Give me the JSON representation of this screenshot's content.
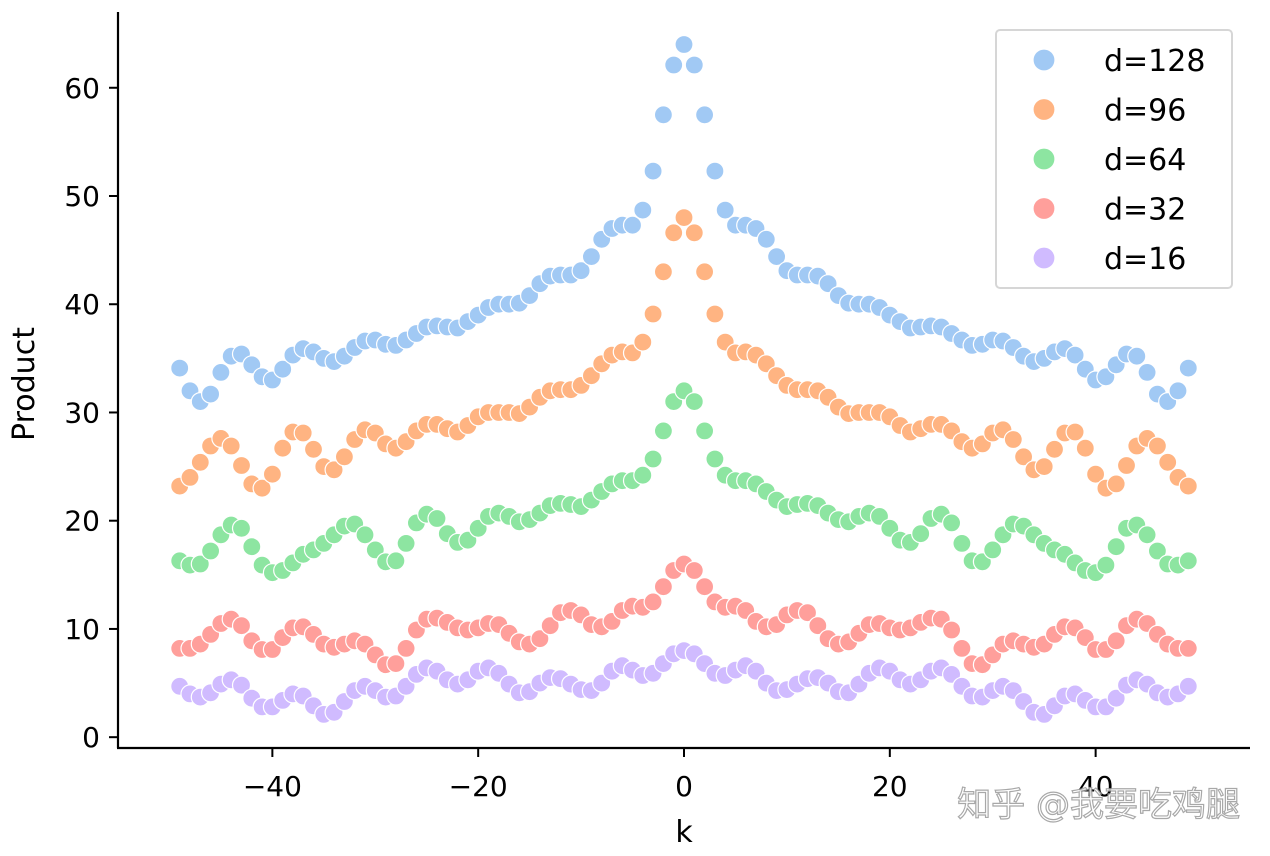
{
  "watermark": "知乎 @我要吃鸡腿",
  "chart_data": {
    "type": "scatter",
    "title": "",
    "xlabel": "k",
    "ylabel": "Product",
    "xlim": [
      -55,
      55
    ],
    "ylim": [
      -1,
      67
    ],
    "xticks": [
      -40,
      -20,
      0,
      20,
      40
    ],
    "xtick_labels": [
      "−40",
      "−20",
      "0",
      "20",
      "40"
    ],
    "yticks": [
      0,
      10,
      20,
      30,
      40,
      50,
      60
    ],
    "ytick_labels": [
      "0",
      "10",
      "20",
      "30",
      "40",
      "50",
      "60"
    ],
    "grid": false,
    "legend_position": "top-right",
    "x": [
      -49,
      -48,
      -47,
      -46,
      -45,
      -44,
      -43,
      -42,
      -41,
      -40,
      -39,
      -38,
      -37,
      -36,
      -35,
      -34,
      -33,
      -32,
      -31,
      -30,
      -29,
      -28,
      -27,
      -26,
      -25,
      -24,
      -23,
      -22,
      -21,
      -20,
      -19,
      -18,
      -17,
      -16,
      -15,
      -14,
      -13,
      -12,
      -11,
      -10,
      -9,
      -8,
      -7,
      -6,
      -5,
      -4,
      -3,
      -2,
      -1,
      0,
      1,
      2,
      3,
      4,
      5,
      6,
      7,
      8,
      9,
      10,
      11,
      12,
      13,
      14,
      15,
      16,
      17,
      18,
      19,
      20,
      21,
      22,
      23,
      24,
      25,
      26,
      27,
      28,
      29,
      30,
      31,
      32,
      33,
      34,
      35,
      36,
      37,
      38,
      39,
      40,
      41,
      42,
      43,
      44,
      45,
      46,
      47,
      48,
      49
    ],
    "series": [
      {
        "name": "d=128",
        "color": "#a1c9f4",
        "values": [
          34.1,
          32.0,
          31.0,
          31.7,
          33.7,
          35.2,
          35.4,
          34.4,
          33.3,
          33.0,
          34.0,
          35.3,
          35.9,
          35.6,
          35.0,
          34.7,
          35.2,
          36.0,
          36.6,
          36.7,
          36.3,
          36.2,
          36.7,
          37.3,
          37.9,
          38.0,
          37.9,
          37.8,
          38.4,
          39.0,
          39.7,
          40.0,
          40.0,
          40.1,
          40.8,
          41.9,
          42.6,
          42.7,
          42.7,
          43.1,
          44.4,
          46.0,
          47.0,
          47.3,
          47.3,
          48.7,
          52.3,
          57.5,
          62.1,
          64.0,
          62.1,
          57.5,
          52.3,
          48.7,
          47.3,
          47.3,
          47.0,
          46.0,
          44.4,
          43.1,
          42.7,
          42.7,
          42.6,
          41.9,
          40.8,
          40.1,
          40.0,
          40.0,
          39.7,
          39.0,
          38.4,
          37.8,
          37.9,
          38.0,
          37.9,
          37.3,
          36.7,
          36.2,
          36.3,
          36.7,
          36.6,
          36.0,
          35.2,
          34.7,
          35.0,
          35.6,
          35.9,
          35.3,
          34.0,
          33.0,
          33.3,
          34.4,
          35.4,
          35.2,
          33.7,
          31.7,
          31.0,
          32.0,
          34.1
        ]
      },
      {
        "name": "d=96",
        "color": "#ffb482",
        "values": [
          23.2,
          24.0,
          25.4,
          26.9,
          27.6,
          26.9,
          25.1,
          23.4,
          23.0,
          24.3,
          26.7,
          28.2,
          28.1,
          26.6,
          25.0,
          24.7,
          25.9,
          27.5,
          28.4,
          28.1,
          27.1,
          26.7,
          27.3,
          28.3,
          28.9,
          28.9,
          28.5,
          28.2,
          28.8,
          29.6,
          30.0,
          30.0,
          30.0,
          29.9,
          30.5,
          31.4,
          32.0,
          32.1,
          32.1,
          32.5,
          33.4,
          34.5,
          35.3,
          35.6,
          35.5,
          36.5,
          39.1,
          43.0,
          46.6,
          48.0,
          46.6,
          43.0,
          39.1,
          36.5,
          35.5,
          35.6,
          35.3,
          34.5,
          33.4,
          32.5,
          32.1,
          32.1,
          32.0,
          31.4,
          30.5,
          29.9,
          30.0,
          30.0,
          30.0,
          29.6,
          28.8,
          28.2,
          28.5,
          28.9,
          28.9,
          28.3,
          27.3,
          26.7,
          27.1,
          28.1,
          28.4,
          27.5,
          25.9,
          24.7,
          25.0,
          26.6,
          28.1,
          28.2,
          26.7,
          24.3,
          23.0,
          23.4,
          25.1,
          26.9,
          27.6,
          26.9,
          25.4,
          24.0,
          23.2
        ]
      },
      {
        "name": "d=64",
        "color": "#8de5a1",
        "values": [
          16.3,
          15.9,
          16.0,
          17.2,
          18.7,
          19.6,
          19.3,
          17.6,
          15.9,
          15.2,
          15.4,
          16.1,
          16.9,
          17.3,
          17.9,
          18.7,
          19.5,
          19.7,
          18.7,
          17.3,
          16.2,
          16.3,
          17.9,
          19.8,
          20.6,
          20.2,
          18.8,
          18.0,
          18.2,
          19.3,
          20.4,
          20.7,
          20.4,
          19.9,
          20.1,
          20.7,
          21.4,
          21.6,
          21.5,
          21.3,
          21.9,
          22.7,
          23.4,
          23.7,
          23.7,
          24.2,
          25.7,
          28.3,
          31.0,
          32.0,
          31.0,
          28.3,
          25.7,
          24.2,
          23.7,
          23.7,
          23.4,
          22.7,
          21.9,
          21.3,
          21.5,
          21.6,
          21.4,
          20.7,
          20.1,
          19.9,
          20.4,
          20.7,
          20.4,
          19.3,
          18.2,
          18.0,
          18.8,
          20.2,
          20.6,
          19.8,
          17.9,
          16.3,
          16.2,
          17.3,
          18.7,
          19.7,
          19.5,
          18.7,
          17.9,
          17.3,
          16.9,
          16.1,
          15.4,
          15.2,
          15.9,
          17.6,
          19.3,
          19.6,
          18.7,
          17.2,
          16.0,
          15.9,
          16.3
        ]
      },
      {
        "name": "d=32",
        "color": "#ff9f9b",
        "values": [
          8.2,
          8.2,
          8.6,
          9.5,
          10.5,
          10.9,
          10.3,
          8.9,
          8.1,
          8.1,
          9.2,
          10.1,
          10.2,
          9.5,
          8.6,
          8.3,
          8.6,
          8.9,
          8.6,
          7.6,
          6.7,
          6.8,
          8.2,
          9.9,
          10.9,
          11.0,
          10.6,
          10.1,
          9.9,
          10.1,
          10.5,
          10.4,
          9.6,
          8.8,
          8.6,
          9.1,
          10.3,
          11.5,
          11.7,
          11.3,
          10.4,
          10.2,
          10.7,
          11.7,
          12.1,
          12.0,
          12.5,
          13.9,
          15.4,
          16.0,
          15.4,
          13.9,
          12.5,
          12.0,
          12.1,
          11.7,
          10.7,
          10.2,
          10.4,
          11.3,
          11.7,
          11.5,
          10.3,
          9.1,
          8.6,
          8.8,
          9.6,
          10.4,
          10.5,
          10.1,
          9.9,
          10.1,
          10.6,
          11.0,
          10.9,
          9.9,
          8.2,
          6.8,
          6.7,
          7.6,
          8.6,
          8.9,
          8.6,
          8.3,
          8.6,
          9.5,
          10.2,
          10.1,
          9.2,
          8.1,
          8.1,
          8.9,
          10.3,
          10.9,
          10.5,
          9.5,
          8.6,
          8.2,
          8.2
        ]
      },
      {
        "name": "d=16",
        "color": "#d0bbff",
        "values": [
          4.7,
          4.0,
          3.7,
          4.1,
          4.9,
          5.3,
          4.8,
          3.6,
          2.8,
          2.8,
          3.4,
          4.0,
          3.8,
          2.9,
          2.1,
          2.3,
          3.3,
          4.3,
          4.7,
          4.3,
          3.7,
          3.8,
          4.7,
          5.8,
          6.4,
          6.1,
          5.3,
          4.9,
          5.3,
          6.1,
          6.4,
          5.9,
          4.9,
          4.1,
          4.2,
          5.0,
          5.5,
          5.4,
          4.9,
          4.4,
          4.3,
          5.0,
          6.1,
          6.6,
          6.2,
          5.7,
          5.9,
          6.8,
          7.7,
          8.0,
          7.7,
          6.8,
          5.9,
          5.7,
          6.2,
          6.6,
          6.1,
          5.0,
          4.3,
          4.4,
          4.9,
          5.4,
          5.5,
          5.0,
          4.2,
          4.1,
          4.9,
          5.9,
          6.4,
          6.1,
          5.3,
          4.9,
          5.3,
          6.1,
          6.4,
          5.8,
          4.7,
          3.8,
          3.7,
          4.3,
          4.7,
          4.3,
          3.3,
          2.3,
          2.1,
          2.9,
          3.8,
          4.0,
          3.4,
          2.8,
          2.8,
          3.6,
          4.8,
          5.3,
          4.9,
          4.1,
          3.7,
          4.0,
          4.7
        ]
      }
    ]
  }
}
